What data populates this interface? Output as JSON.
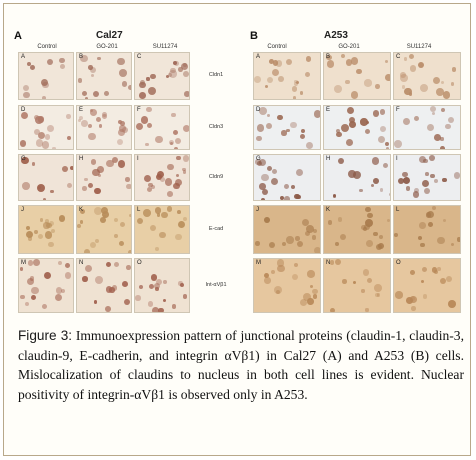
{
  "panels": [
    {
      "letter": "A",
      "cell_line": "Cal27",
      "columns": [
        "Control",
        "GO-201",
        "SU11274"
      ],
      "rows": [
        {
          "label": "Cldn1",
          "tiles": [
            "A",
            "B",
            "C"
          ],
          "colors": {
            "bg": "#f1e6d9",
            "nuc": "#a06a58"
          }
        },
        {
          "label": "Cldn3",
          "tiles": [
            "D",
            "E",
            "F"
          ],
          "colors": {
            "bg": "#f3ece2",
            "nuc": "#b07a68"
          }
        },
        {
          "label": "Cldn9",
          "tiles": [
            "G",
            "H",
            "I"
          ],
          "colors": {
            "bg": "#f0e4d8",
            "nuc": "#9e5e4a"
          }
        },
        {
          "label": "E-cad",
          "tiles": [
            "J",
            "K",
            "L"
          ],
          "colors": {
            "bg": "#e8cfa6",
            "nuc": "#b88d5a"
          }
        },
        {
          "label": "Int-αVβ1",
          "tiles": [
            "M",
            "N",
            "O"
          ],
          "colors": {
            "bg": "#efe2d2",
            "nuc": "#a2624f"
          }
        }
      ]
    },
    {
      "letter": "B",
      "cell_line": "A253",
      "columns": [
        "Control",
        "GO-201",
        "SU11274"
      ],
      "rows": [
        {
          "tiles": [
            "A",
            "B",
            "C"
          ],
          "colors": {
            "bg": "#efe0cd",
            "nuc": "#b98c68"
          }
        },
        {
          "tiles": [
            "D",
            "E",
            "F"
          ],
          "colors": {
            "bg": "#eef0f1",
            "nuc": "#9a6650"
          }
        },
        {
          "tiles": [
            "G",
            "H",
            "I"
          ],
          "colors": {
            "bg": "#edeef0",
            "nuc": "#8c5a48"
          }
        },
        {
          "tiles": [
            "J",
            "K",
            "L"
          ],
          "colors": {
            "bg": "#d9b68a",
            "nuc": "#a87b4c"
          }
        },
        {
          "tiles": [
            "M",
            "N",
            "O"
          ],
          "colors": {
            "bg": "#e6c79f",
            "nuc": "#b88858"
          }
        }
      ]
    }
  ],
  "caption": {
    "label": "Figure 3:",
    "text": " Immunoexpression pattern of junctional proteins (claudin-1, claudin-3, claudin-9, E-cadherin, and integrin αVβ1) in Cal27 (A) and A253 (B) cells. Mislocalization of claudins to nucleus in both cell lines is evident. Nuclear positivity of integrin-αVβ1 is observed only in A253."
  }
}
